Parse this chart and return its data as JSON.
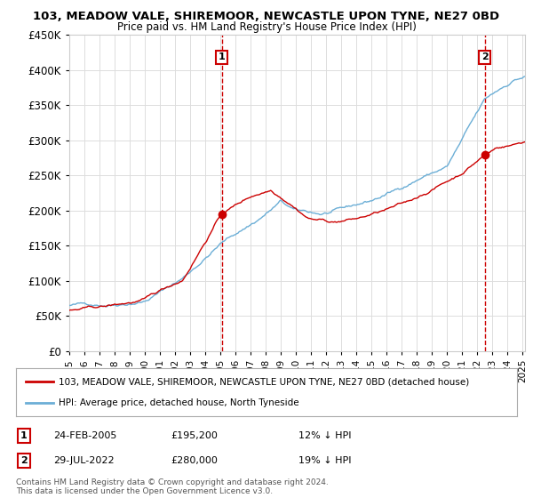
{
  "title_line1": "103, MEADOW VALE, SHIREMOOR, NEWCASTLE UPON TYNE, NE27 0BD",
  "title_line2": "Price paid vs. HM Land Registry's House Price Index (HPI)",
  "hpi_color": "#6baed6",
  "sale_color": "#cc0000",
  "vline_color": "#cc0000",
  "legend_label_sale": "103, MEADOW VALE, SHIREMOOR, NEWCASTLE UPON TYNE, NE27 0BD (detached house)",
  "legend_label_hpi": "HPI: Average price, detached house, North Tyneside",
  "sale1_price": 195200,
  "sale1_label": "1",
  "sale1_text": "24-FEB-2005",
  "sale1_amount": "£195,200",
  "sale1_pct": "12% ↓ HPI",
  "sale2_price": 280000,
  "sale2_label": "2",
  "sale2_text": "29-JUL-2022",
  "sale2_amount": "£280,000",
  "sale2_pct": "19% ↓ HPI",
  "copyright_text": "Contains HM Land Registry data © Crown copyright and database right 2024.\nThis data is licensed under the Open Government Licence v3.0.",
  "ylim_min": 0,
  "ylim_max": 450000,
  "background_color": "#ffffff",
  "plot_bg_color": "#ffffff",
  "grid_color": "#dddddd"
}
